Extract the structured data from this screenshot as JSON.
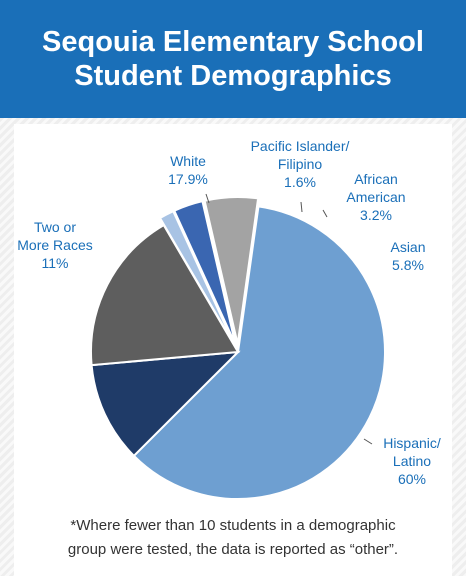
{
  "header": {
    "title_line1": "Seqouia Elementary School",
    "title_line2": "Student Demographics"
  },
  "chart_data": {
    "type": "pie",
    "title": "Seqouia Elementary School Student Demographics",
    "slices": [
      {
        "label_lines": [
          "Hispanic/",
          "Latino"
        ],
        "value": 60,
        "value_label": "60%",
        "color": "#6e9fd1"
      },
      {
        "label_lines": [
          "Two or",
          "More Races"
        ],
        "value": 11,
        "value_label": "11%",
        "color": "#1f3b68"
      },
      {
        "label_lines": [
          "White"
        ],
        "value": 17.9,
        "value_label": "17.9%",
        "color": "#5e5e5e"
      },
      {
        "label_lines": [
          "Pacific Islander/",
          "Filipino"
        ],
        "value": 1.6,
        "value_label": "1.6%",
        "color": "#a8c3e4"
      },
      {
        "label_lines": [
          "African",
          "American"
        ],
        "value": 3.2,
        "value_label": "3.2%",
        "color": "#3a66b1"
      },
      {
        "label_lines": [
          "Asian"
        ],
        "value": 5.8,
        "value_label": "5.8%",
        "color": "#a3a3a3"
      }
    ],
    "legend": "none"
  },
  "footnote": {
    "line1": "*Where fewer than 10 students in a demographic",
    "line2": "group were tested, the data is reported as “other”."
  },
  "colors": {
    "header_bg": "#1a6fb8",
    "label_text": "#1a6fb8"
  }
}
